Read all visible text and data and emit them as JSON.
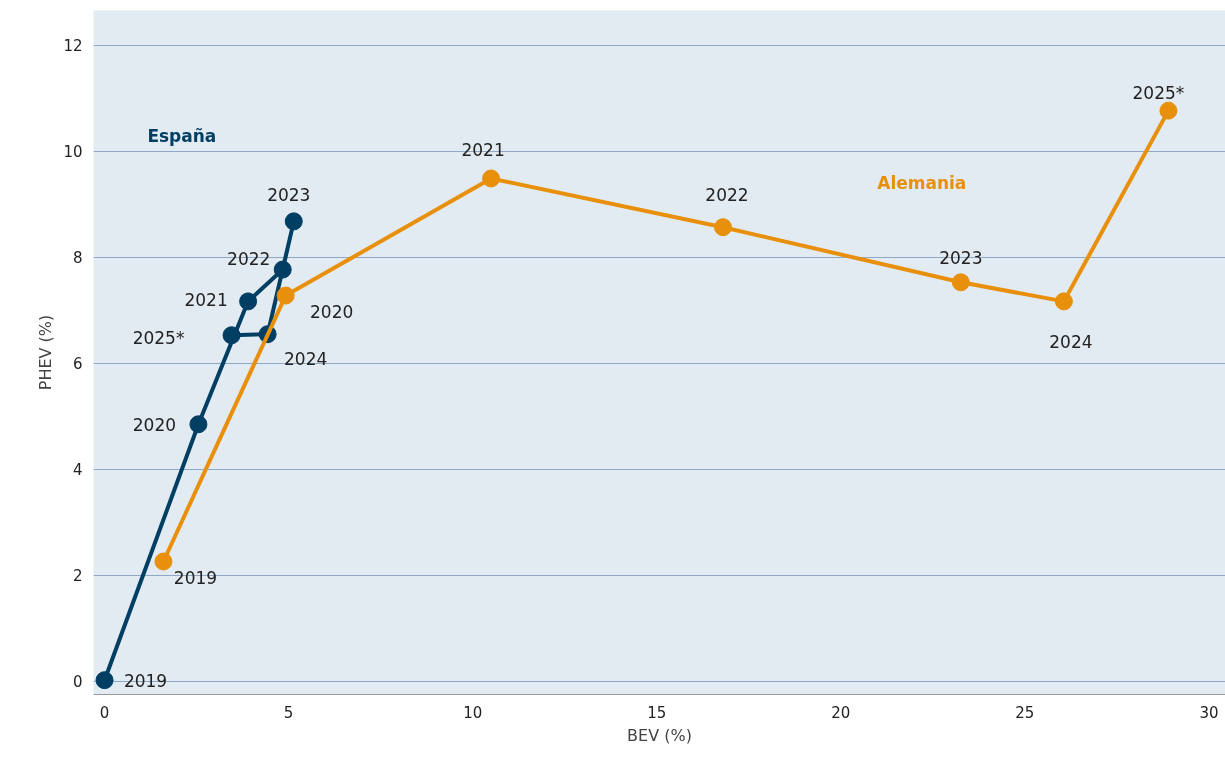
{
  "chart_data": {
    "type": "line",
    "xlabel": "BEV (%)",
    "ylabel": "PHEV (%)",
    "xlim": [
      -0.3,
      30.45
    ],
    "ylim": [
      -0.25,
      12.66
    ],
    "xticks": [
      0,
      5,
      10,
      15,
      20,
      25,
      30
    ],
    "yticks": [
      0,
      2,
      4,
      6,
      8,
      10,
      12
    ],
    "grid": "y",
    "marker": "circle",
    "line_style": "solid",
    "series": [
      {
        "name": "España",
        "color": "#003f63",
        "x": [
          0,
          2.55,
          3.9,
          4.84,
          5.14,
          4.43,
          3.45
        ],
        "values": [
          0.02,
          4.85,
          7.17,
          7.77,
          8.68,
          6.55,
          6.53
        ]
      },
      {
        "name": "Alemania",
        "color": "#e8900c",
        "x": [
          1.6,
          4.92,
          10.5,
          16.8,
          23.26,
          26.06,
          28.9
        ],
        "values": [
          2.26,
          7.28,
          9.49,
          8.57,
          7.53,
          7.17,
          10.77
        ]
      }
    ],
    "annotations": [
      {
        "text": "2019",
        "x": 0,
        "y": 0.02
      },
      {
        "text": "2020",
        "x": 2.55,
        "y": 4.85
      },
      {
        "text": "2021",
        "x": 3.9,
        "y": 7.17
      },
      {
        "text": "2022",
        "x": 4.84,
        "y": 7.77
      },
      {
        "text": "2023",
        "x": 5.14,
        "y": 8.68
      },
      {
        "text": "2024",
        "x": 4.43,
        "y": 6.55
      },
      {
        "text": "2025*",
        "x": 3.45,
        "y": 6.53
      },
      {
        "text": "2019",
        "x": 1.6,
        "y": 2.26
      },
      {
        "text": "2020",
        "x": 4.92,
        "y": 7.28
      },
      {
        "text": "2021",
        "x": 10.5,
        "y": 9.49
      },
      {
        "text": "2022",
        "x": 16.8,
        "y": 8.57
      },
      {
        "text": "2023",
        "x": 23.26,
        "y": 7.53
      },
      {
        "text": "2024",
        "x": 26.06,
        "y": 7.17
      },
      {
        "text": "2025*",
        "x": 28.9,
        "y": 10.77
      }
    ]
  }
}
